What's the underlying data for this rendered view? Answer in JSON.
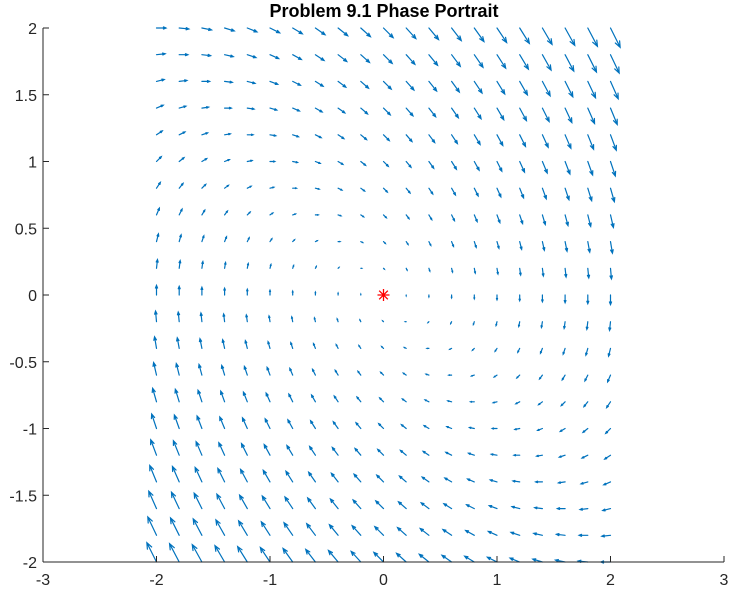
{
  "chart_data": {
    "type": "quiver",
    "title": "Problem 9.1 Phase Portrait",
    "xlabel": "",
    "ylabel": "",
    "xlim": [
      -3,
      3
    ],
    "ylim": [
      -2,
      2
    ],
    "x_ticks": [
      -3,
      -2,
      -1,
      0,
      1,
      2,
      3
    ],
    "y_ticks": [
      -2,
      -1.5,
      -1,
      -0.5,
      0,
      0.5,
      1,
      1.5,
      2
    ],
    "x_tick_labels": [
      "-3",
      "-2",
      "-1",
      "0",
      "1",
      "2",
      "3"
    ],
    "y_tick_labels": [
      "-2",
      "-1.5",
      "-1",
      "-0.5",
      "0",
      "0.5",
      "1",
      "1.5",
      "2"
    ],
    "grid": false,
    "vector_field": {
      "x_range": [
        -2,
        2
      ],
      "y_range": [
        -2,
        2
      ],
      "step": 0.2,
      "dx_expression": "y",
      "dy_expression": "-x - y",
      "color": "#0072BD"
    },
    "equilibrium": {
      "x": 0,
      "y": 0,
      "marker": "*",
      "color": "#FF0000"
    }
  }
}
